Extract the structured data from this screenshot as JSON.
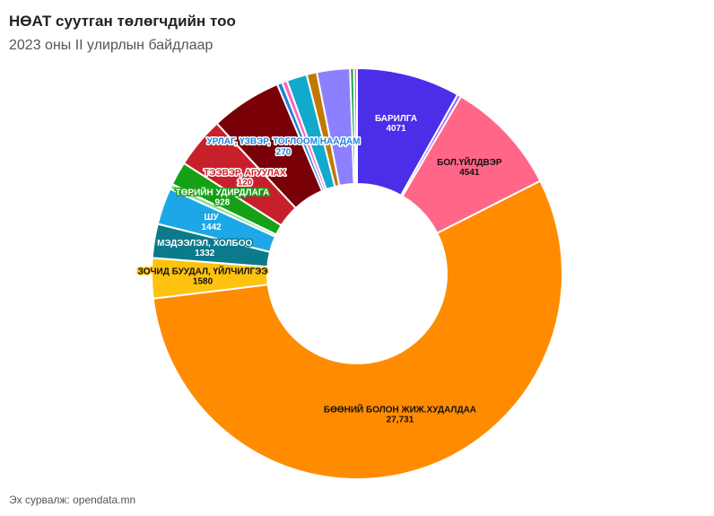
{
  "chart_data": {
    "type": "donut",
    "title": "НӨАТ суутган төлөгчдийн тоо",
    "subtitle": "2023 оны II улирлын байдлаар",
    "source": "Эх сурвалж: opendata.mn",
    "categories": [
      "БАРИЛГА",
      null,
      "БОЛ.ҮЙЛДВЭР",
      "БӨӨНИЙ БОЛОН ЖИЖ.ХУДАЛДАА",
      "ЗОЧИД БУУДАЛ, ҮЙЛЧИЛГЭЭ",
      "МЭДЭЭЛЭЛ, ХОЛБОО",
      "ШУ",
      null,
      "ТӨРИЙН УДИРДЛАГА",
      null,
      null,
      null,
      null,
      null,
      null,
      null,
      null,
      null
    ],
    "values": [
      4071,
      150,
      4541,
      27731,
      1580,
      1332,
      1442,
      200,
      928,
      2000,
      2800,
      200,
      200,
      800,
      400,
      1300,
      150,
      120
    ],
    "value_labels": [
      "4071",
      null,
      "4541",
      "27,731",
      "1580",
      "1332",
      "1442",
      null,
      "928",
      null,
      null,
      null,
      null,
      null,
      null,
      null,
      null,
      null
    ],
    "colors": [
      "#4b2ee8",
      "#9b6cf0",
      "#ff6688",
      "#ff8c00",
      "#ffc20e",
      "#0b7a8a",
      "#1ea7e8",
      "#90e090",
      "#16a016",
      "#c8202a",
      "#7a0008",
      "#1e7fe0",
      "#ff66bb",
      "#12aacc",
      "#c07a00",
      "#8c80ff",
      "#18a040",
      "#ff6688"
    ],
    "annotations": [
      {
        "text": "ТЭЭВЭР, АГУУЛАХ",
        "value": 120,
        "color": "#c8202a"
      },
      {
        "text": "УРЛАГ, ҮЗВЭР, ТОГЛООМ НААДАМ",
        "value": 270,
        "color": "#1e7fe0"
      }
    ]
  }
}
